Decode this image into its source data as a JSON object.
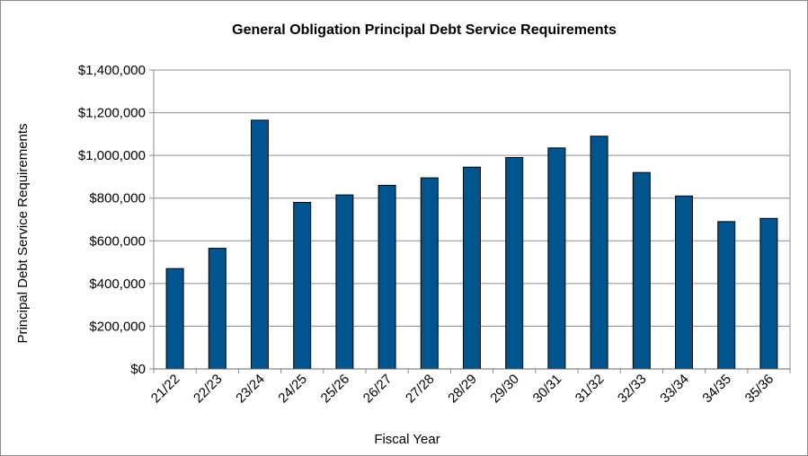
{
  "chart_data": {
    "type": "bar",
    "title": "General Obligation Principal Debt Service Requirements",
    "xlabel": "Fiscal Year",
    "ylabel": "Principal Debt Service Requirements",
    "ylim": [
      0,
      1400000
    ],
    "yticks": [
      0,
      200000,
      400000,
      600000,
      800000,
      1000000,
      1200000,
      1400000
    ],
    "ytick_labels": [
      "$0",
      "$200,000",
      "$400,000",
      "$600,000",
      "$800,000",
      "$1,000,000",
      "$1,200,000",
      "$1,400,000"
    ],
    "categories": [
      "21/22",
      "22/23",
      "23/24",
      "24/25",
      "25/26",
      "26/27",
      "27/28",
      "28/29",
      "29/30",
      "30/31",
      "31/32",
      "32/33",
      "33/34",
      "34/35",
      "35/36"
    ],
    "values": [
      470000,
      565000,
      1165000,
      780000,
      815000,
      860000,
      895000,
      945000,
      990000,
      1035000,
      1090000,
      920000,
      810000,
      690000,
      705000
    ],
    "grid": true,
    "legend": "none",
    "colors": {
      "bar": "#00558f",
      "bar_edge": "#000000",
      "grid": "#8c8c8c",
      "axis": "#8c8c8c"
    }
  }
}
